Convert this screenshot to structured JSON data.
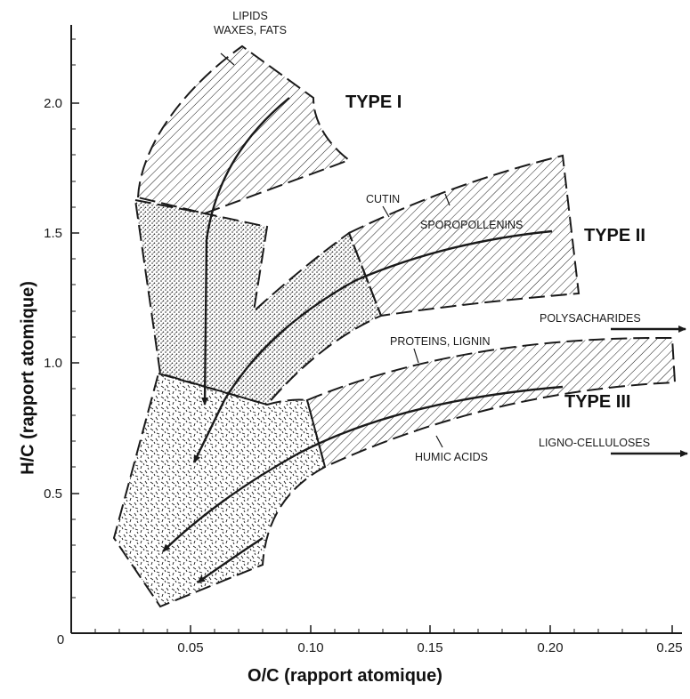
{
  "title": "",
  "axes": {
    "x_label": "O/C (rapport atomique)",
    "y_label": "H/C (rapport atomique)",
    "x_ticks": [
      "0",
      "0.05",
      "0.10",
      "0.15",
      "0.20",
      "0.25"
    ],
    "y_ticks": [
      "0.5",
      "1.0",
      "1.5",
      "2.0"
    ]
  },
  "kerogen_types": [
    "TYPE I",
    "TYPE II",
    "TYPE III"
  ],
  "annotations": {
    "lipids": "LIPIDS",
    "waxes_fats": "WAXES, FATS",
    "cutin": "CUTIN",
    "sporopollenins": "SPOROPOLLENINS",
    "polysacharides": "POLYSACHARIDES",
    "proteins_lignin": "PROTEINS, LIGNIN",
    "humic_acids": "HUMIC ACIDS",
    "ligno_celluloses": "LIGNO-CELLULOSES"
  },
  "style": {
    "ink": "#1a1a1a",
    "paper": "#ffffff"
  }
}
